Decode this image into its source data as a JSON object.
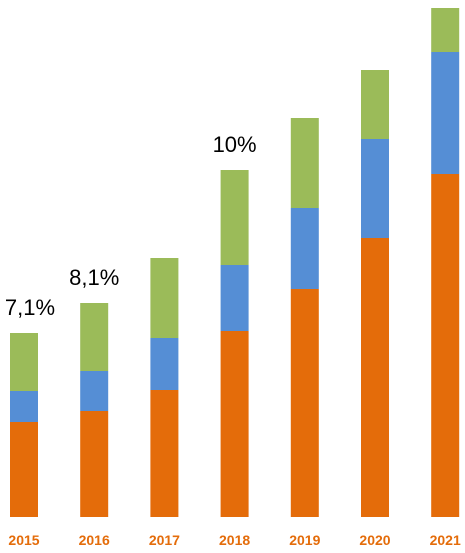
{
  "chart_data": {
    "type": "bar",
    "stacked": true,
    "categories": [
      "2015",
      "2016",
      "2017",
      "2018",
      "2019",
      "2020",
      "2021"
    ],
    "series": [
      {
        "color": "#e46c0a",
        "values": [
          95,
          106,
          127,
          186,
          228,
          279,
          343
        ]
      },
      {
        "color": "#558ed5",
        "values": [
          31,
          40,
          52,
          66,
          81,
          99,
          122
        ]
      },
      {
        "color": "#9bbb59",
        "values": [
          58,
          68,
          80,
          95,
          90,
          69,
          44
        ]
      }
    ],
    "annotations": [
      {
        "category": "2015",
        "text": "7,1%"
      },
      {
        "category": "2016",
        "text": "8,1%"
      },
      {
        "category": "2018",
        "text": "10%"
      }
    ],
    "tick_color": "#e46c0a",
    "annotation_color": "#000000",
    "ylim": [
      0,
      513
    ],
    "grid": false,
    "legend": false,
    "title": "",
    "xlabel": "",
    "ylabel": ""
  }
}
